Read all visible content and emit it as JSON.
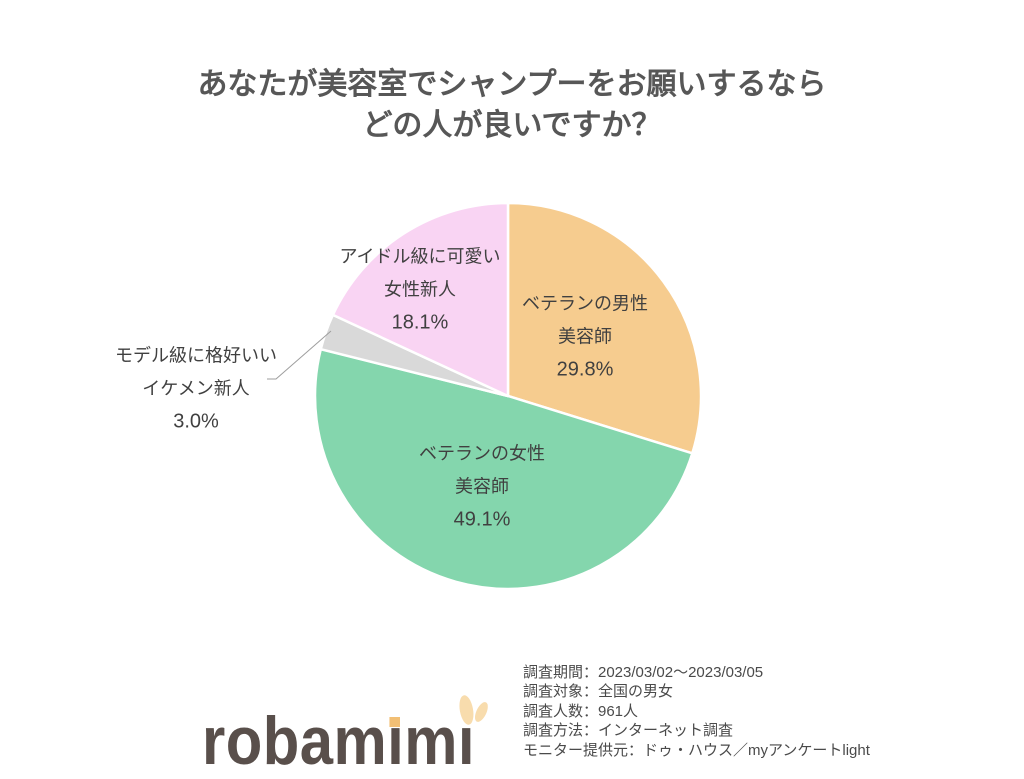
{
  "title": {
    "line1": "あなたが美容室でシャンプーをお願いするなら",
    "line2": "どの人が良いですか？"
  },
  "chart_data": {
    "type": "pie",
    "title": "あなたが美容室でシャンプーをお願いするなら どの人が良いですか？",
    "start_angle_deg": 0,
    "direction": "clockwise",
    "legend": "none",
    "slices": [
      {
        "label": "ベテランの男性美容師",
        "label_lines": [
          "ベテランの男性",
          "美容師"
        ],
        "value": 29.8,
        "pct_label": "29.8%",
        "color": "#F6CC8F"
      },
      {
        "label": "ベテランの女性美容師",
        "label_lines": [
          "ベテランの女性",
          "美容師"
        ],
        "value": 49.1,
        "pct_label": "49.1%",
        "color": "#84D6AD"
      },
      {
        "label": "モデル級に格好いいイケメン新人",
        "label_lines": [
          "モデル級に格好いい",
          "イケメン新人"
        ],
        "value": 3.0,
        "pct_label": "3.0%",
        "color": "#D9D9D9"
      },
      {
        "label": "アイドル級に可愛い女性新人",
        "label_lines": [
          "アイドル級に可愛い",
          "女性新人"
        ],
        "value": 18.1,
        "pct_label": "18.1%",
        "color": "#F9D4F3"
      }
    ]
  },
  "footer": {
    "survey_lines": [
      "調査期間：2023/03/02～2023/03/05",
      "調査対象：全国の男女",
      "調査人数：961人",
      "調査方法：インターネット調査",
      "モニター提供元：ドゥ・ハウス／myアンケートlight"
    ],
    "logo_text": "robamimi"
  },
  "colors": {
    "title_text": "#575757",
    "label_text": "#404040",
    "survey_text": "#4A4A4A",
    "logo_text": "#594F4B",
    "logo_accent_dot": "#F2BF74",
    "logo_accent_ears": "#F8DCAD",
    "leader_line": "#9E9E9E",
    "background": "#FFFFFF"
  }
}
